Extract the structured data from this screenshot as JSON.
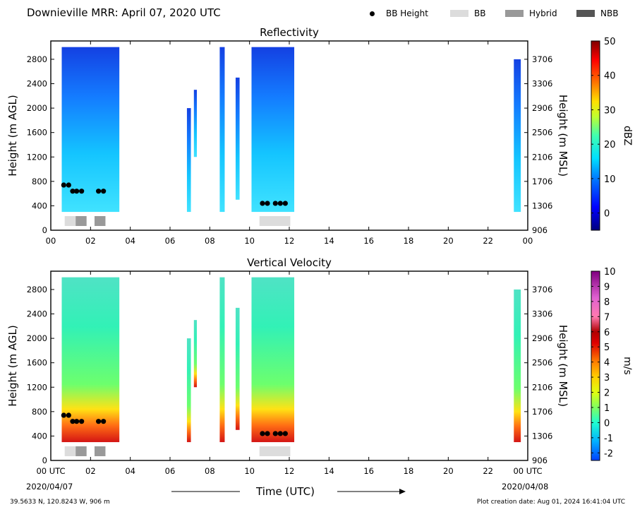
{
  "header": {
    "title": "Downieville MRR:  April 07, 2020 UTC"
  },
  "legend": {
    "items": [
      {
        "label": "BB Height",
        "kind": "dot",
        "color": "#000000"
      },
      {
        "label": "BB",
        "kind": "swatch",
        "color": "#dcdcdc"
      },
      {
        "label": "Hybrid",
        "kind": "swatch",
        "color": "#999999"
      },
      {
        "label": "NBB",
        "kind": "swatch",
        "color": "#555555"
      }
    ]
  },
  "footer": {
    "location": "39.5633 N, 120.8243 W, 906 m",
    "creation": "Plot creation date: Aug 01, 2024 16:41:04 UTC",
    "time_label": "Time (UTC)",
    "date_start": "2020/04/07",
    "date_end": "2020/04/08"
  },
  "chart_data": [
    {
      "type": "heatmap",
      "title": "Reflectivity",
      "ylabel": "Height (m AGL)",
      "ylabel_right": "Height (m MSL)",
      "xlim": [
        0,
        24
      ],
      "ylim": [
        0,
        3100
      ],
      "x_ticks": [
        "00",
        "02",
        "04",
        "06",
        "08",
        "10",
        "12",
        "14",
        "16",
        "18",
        "20",
        "22",
        "00"
      ],
      "y_ticks": [
        "0",
        "400",
        "800",
        "1200",
        "1600",
        "2000",
        "2400",
        "2800"
      ],
      "y_ticks_right": [
        "906",
        "1306",
        "1706",
        "2106",
        "2506",
        "2906",
        "3306",
        "3706"
      ],
      "colorbar": {
        "label": "dBZ",
        "range": [
          -5,
          50
        ],
        "ticks": [
          "0",
          "10",
          "20",
          "30",
          "40",
          "50"
        ]
      },
      "precip_bands": [
        {
          "start": 0.55,
          "end": 3.45,
          "from": 300,
          "to": 3000
        },
        {
          "start": 6.85,
          "end": 7.05,
          "from": 300,
          "to": 2000
        },
        {
          "start": 7.2,
          "end": 7.35,
          "from": 1200,
          "to": 2300
        },
        {
          "start": 8.5,
          "end": 8.75,
          "from": 300,
          "to": 3000
        },
        {
          "start": 9.3,
          "end": 9.5,
          "from": 500,
          "to": 2500
        },
        {
          "start": 10.1,
          "end": 12.25,
          "from": 300,
          "to": 3000
        },
        {
          "start": 23.3,
          "end": 23.65,
          "from": 300,
          "to": 2800
        }
      ],
      "bb_height": {
        "x": [
          0.65,
          0.9,
          1.1,
          1.3,
          1.55,
          2.4,
          2.65,
          10.65,
          10.9,
          11.3,
          11.55,
          11.8
        ],
        "y": [
          740,
          740,
          640,
          640,
          640,
          640,
          640,
          440,
          440,
          440,
          440,
          440
        ]
      },
      "bb_type": [
        {
          "type": "BB",
          "start": 0.7,
          "end": 1.25
        },
        {
          "type": "Hybrid",
          "start": 1.25,
          "end": 1.8
        },
        {
          "type": "Hybrid",
          "start": 2.2,
          "end": 2.75
        },
        {
          "type": "BB",
          "start": 10.5,
          "end": 12.05
        }
      ]
    },
    {
      "type": "heatmap",
      "title": "Vertical Velocity",
      "ylabel": "Height (m AGL)",
      "ylabel_right": "Height (m MSL)",
      "xlim": [
        0,
        24
      ],
      "ylim": [
        0,
        3100
      ],
      "x_ticks": [
        "00 UTC",
        "02",
        "04",
        "06",
        "08",
        "10",
        "12",
        "14",
        "16",
        "18",
        "20",
        "22",
        "00 UTC"
      ],
      "y_ticks": [
        "0",
        "400",
        "800",
        "1200",
        "1600",
        "2000",
        "2400",
        "2800"
      ],
      "y_ticks_right": [
        "906",
        "1306",
        "1706",
        "2106",
        "2506",
        "2906",
        "3306",
        "3706"
      ],
      "colorbar": {
        "label": "m/s",
        "range": [
          -2.5,
          10
        ],
        "ticks": [
          "-2",
          "-1",
          "0",
          "1",
          "2",
          "3",
          "4",
          "5",
          "6",
          "7",
          "8",
          "9",
          "10"
        ]
      },
      "precip_bands": [
        {
          "start": 0.55,
          "end": 3.45,
          "from": 300,
          "to": 3000
        },
        {
          "start": 6.85,
          "end": 7.05,
          "from": 300,
          "to": 2000
        },
        {
          "start": 7.2,
          "end": 7.35,
          "from": 1200,
          "to": 2300
        },
        {
          "start": 8.5,
          "end": 8.75,
          "from": 300,
          "to": 3000
        },
        {
          "start": 9.3,
          "end": 9.5,
          "from": 500,
          "to": 2500
        },
        {
          "start": 10.1,
          "end": 12.25,
          "from": 300,
          "to": 3000
        },
        {
          "start": 23.3,
          "end": 23.65,
          "from": 300,
          "to": 2800
        }
      ],
      "bb_height": {
        "x": [
          0.65,
          0.9,
          1.1,
          1.3,
          1.55,
          2.4,
          2.65,
          10.65,
          10.9,
          11.3,
          11.55,
          11.8
        ],
        "y": [
          740,
          740,
          640,
          640,
          640,
          640,
          640,
          440,
          440,
          440,
          440,
          440
        ]
      },
      "bb_type": [
        {
          "type": "BB",
          "start": 0.7,
          "end": 1.25
        },
        {
          "type": "Hybrid",
          "start": 1.25,
          "end": 1.8
        },
        {
          "type": "Hybrid",
          "start": 2.2,
          "end": 2.75
        },
        {
          "type": "BB",
          "start": 10.5,
          "end": 12.05
        }
      ]
    }
  ]
}
